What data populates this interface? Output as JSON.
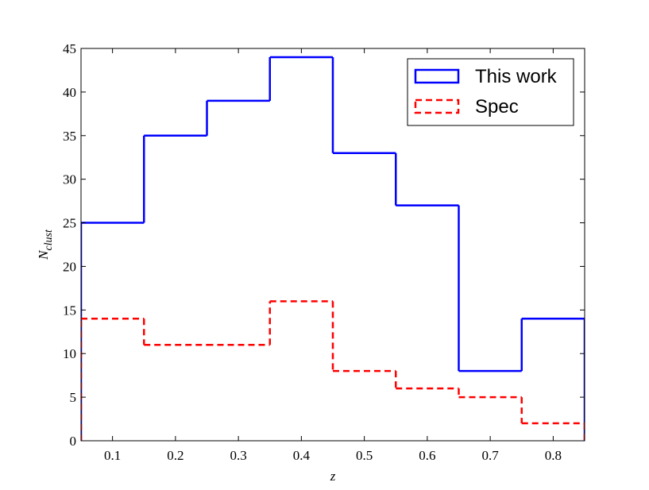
{
  "chart_data": {
    "type": "step-histogram",
    "xlabel": "z",
    "ylabel": "N",
    "ylabel_subscript": "clust",
    "bins": [
      0.05,
      0.15,
      0.25,
      0.35,
      0.45,
      0.55,
      0.65,
      0.75,
      0.85
    ],
    "series": [
      {
        "name": "This work",
        "color": "#0000ff",
        "dash": false,
        "values": [
          25,
          35,
          39,
          44,
          33,
          27,
          8,
          14
        ]
      },
      {
        "name": "Spec",
        "color": "#ff0000",
        "dash": true,
        "values": [
          14,
          11,
          11,
          16,
          8,
          6,
          5,
          2
        ]
      }
    ],
    "xlim": [
      0.05,
      0.85
    ],
    "xticks": [
      0.1,
      0.2,
      0.3,
      0.4,
      0.5,
      0.6,
      0.7,
      0.8
    ],
    "ylim": [
      0,
      45
    ],
    "yticks": [
      0,
      5,
      10,
      15,
      20,
      25,
      30,
      35,
      40,
      45
    ],
    "legend": "upper right"
  }
}
